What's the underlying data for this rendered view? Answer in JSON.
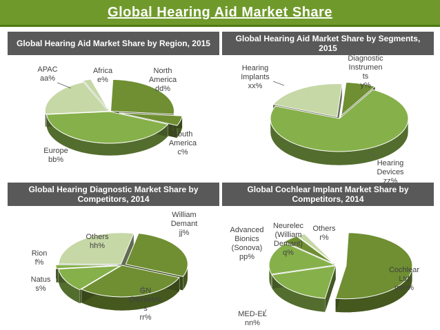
{
  "title": "Global Hearing Aid Market Share",
  "colors": {
    "dark": "#6f8f32",
    "light": "#c6d8a6",
    "mid": "#86b04a",
    "accent": "#5e8c1e",
    "header": "#595959"
  },
  "chart_data": [
    {
      "type": "pie",
      "title": "Global Hearing Aid Market Share by Region, 2015",
      "slices": [
        {
          "label": [
            "North",
            "America",
            "dd%"
          ],
          "share": 0.26,
          "color": "#6f8f32",
          "explode": 2
        },
        {
          "label": [
            "South",
            "America",
            "c%"
          ],
          "share": 0.05,
          "color": "#6f8f32",
          "explode": 14
        },
        {
          "label": [
            "Europe",
            "bb%"
          ],
          "share": 0.42,
          "color": "#86b04a",
          "explode": 0
        },
        {
          "label": [
            "APAC",
            "aa%"
          ],
          "share": 0.2,
          "color": "#c6d8a6",
          "explode": 2
        },
        {
          "label": [
            "Africa",
            "e%"
          ],
          "share": 0.02,
          "color": "#c6d8a6",
          "explode": 6
        }
      ]
    },
    {
      "type": "pie",
      "title": "Global Hearing Aid Market Share by Segments, 2015",
      "slices": [
        {
          "label": [
            "Diagnostic",
            "Instrumen",
            "ts",
            "y%"
          ],
          "share": 0.07,
          "color": "#6f8f32",
          "explode": 10
        },
        {
          "label": [
            "Hearing",
            "Devices",
            "zz%"
          ],
          "share": 0.73,
          "color": "#86b04a",
          "explode": 0
        },
        {
          "label": [
            "Hearing",
            "Implants",
            "xx%"
          ],
          "share": 0.2,
          "color": "#c6d8a6",
          "explode": 6
        }
      ]
    },
    {
      "type": "pie",
      "title": "Global Hearing Diagnostic Market Share by Competitors, 2014",
      "slices": [
        {
          "label": [
            "William",
            "Demant",
            "jj%"
          ],
          "share": 0.28,
          "color": "#6f8f32",
          "explode": 6
        },
        {
          "label": [
            "GN",
            "Otometric",
            "s",
            "rr%"
          ],
          "share": 0.3,
          "color": "#6f8f32",
          "explode": 0
        },
        {
          "label": [
            "Natus",
            "s%"
          ],
          "share": 0.12,
          "color": "#86b04a",
          "explode": 3
        },
        {
          "label": [
            "Rion",
            "f%"
          ],
          "share": 0.02,
          "color": "#86b04a",
          "explode": 6
        },
        {
          "label": [
            "Others",
            "hh%"
          ],
          "share": 0.28,
          "color": "#c6d8a6",
          "explode": 3
        }
      ]
    },
    {
      "type": "pie",
      "title": "Global Cochlear Implant Market Share by Competitors, 2014",
      "slices": [
        {
          "label": [
            "Cochlear",
            "Ltd",
            "mm%"
          ],
          "share": 0.52,
          "color": "#6f8f32",
          "explode": 14
        },
        {
          "label": [
            "MED-EL",
            "nn%"
          ],
          "share": 0.18,
          "color": "#86b04a",
          "explode": 2
        },
        {
          "label": [
            "Advanced",
            "Bionics",
            "(Sonova)",
            "pp%"
          ],
          "share": 0.16,
          "color": "#86b04a",
          "explode": 2
        },
        {
          "label": [
            "Neurelec",
            "(William",
            "Demant)",
            "q%"
          ],
          "share": 0.04,
          "color": "#6f8f32",
          "explode": 6
        },
        {
          "label": [
            "Others",
            "r%"
          ],
          "share": 0.02,
          "color": "#c6d8a6",
          "explode": 6
        }
      ]
    }
  ]
}
